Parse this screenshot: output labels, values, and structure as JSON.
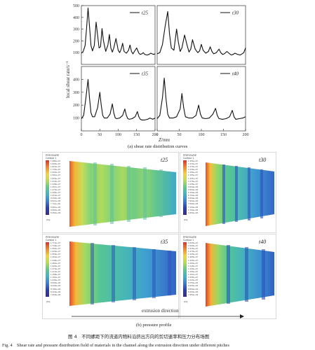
{
  "figure": {
    "part_a_caption": "(a) shear rate distribution curves",
    "part_b_caption": "(b) pressure profile",
    "caption_cn": "图 4　不同螺距下的流道内物料沿挤出方向的剪切速率和压力分布场图",
    "caption_en": "Fig. 4　Shear rate and pressure distribution field of materials in the channel along the extrusion direction under different pitches",
    "y_axis_label": "local shear rate/s⁻¹",
    "x_axis_label": "Z/mm",
    "extrusion_label": "extrusion direction"
  },
  "chart_data": [
    {
      "type": "line",
      "legend": "t25",
      "x": [
        0,
        5,
        10,
        14,
        18,
        22,
        26,
        30,
        35,
        40,
        44,
        48,
        52,
        56,
        60,
        66,
        72,
        76,
        80,
        84,
        88,
        94,
        100,
        104,
        108,
        112,
        116,
        122,
        128,
        132,
        136,
        140,
        144,
        150,
        156,
        160,
        164,
        168,
        172,
        178,
        184,
        188,
        192,
        196,
        200
      ],
      "y": [
        95,
        110,
        160,
        300,
        480,
        330,
        160,
        115,
        160,
        360,
        250,
        140,
        150,
        305,
        200,
        110,
        165,
        255,
        140,
        105,
        140,
        220,
        120,
        100,
        130,
        180,
        110,
        95,
        120,
        165,
        110,
        90,
        110,
        140,
        95,
        85,
        90,
        100,
        85,
        80,
        85,
        95,
        90,
        85,
        90
      ],
      "xlim": [
        0,
        200
      ],
      "ylim": [
        0,
        500
      ],
      "yticks": [
        100,
        200,
        300,
        400,
        500
      ]
    },
    {
      "type": "line",
      "legend": "t30",
      "x": [
        0,
        6,
        12,
        18,
        24,
        28,
        32,
        38,
        44,
        48,
        52,
        56,
        62,
        68,
        72,
        76,
        80,
        86,
        92,
        96,
        100,
        104,
        110,
        116,
        120,
        124,
        128,
        134,
        140,
        144,
        148,
        152,
        158,
        164,
        168,
        172,
        176,
        182,
        188,
        192,
        196,
        200
      ],
      "y": [
        90,
        100,
        170,
        320,
        450,
        260,
        140,
        120,
        300,
        190,
        110,
        140,
        250,
        160,
        105,
        130,
        210,
        130,
        100,
        115,
        170,
        120,
        95,
        110,
        150,
        110,
        90,
        100,
        130,
        100,
        85,
        90,
        110,
        90,
        80,
        85,
        95,
        85,
        80,
        90,
        100,
        140
      ],
      "xlim": [
        0,
        200
      ],
      "ylim": [
        0,
        500
      ]
    },
    {
      "type": "line",
      "legend": "t35",
      "x": [
        0,
        6,
        12,
        18,
        22,
        26,
        30,
        36,
        44,
        50,
        54,
        58,
        62,
        70,
        78,
        84,
        88,
        92,
        96,
        104,
        112,
        118,
        122,
        126,
        130,
        138,
        146,
        152,
        156,
        160,
        164,
        172,
        180,
        186,
        190,
        194,
        200
      ],
      "y": [
        95,
        120,
        250,
        400,
        260,
        140,
        110,
        110,
        180,
        300,
        200,
        120,
        100,
        100,
        130,
        210,
        140,
        100,
        95,
        100,
        120,
        170,
        120,
        95,
        90,
        95,
        110,
        150,
        110,
        90,
        85,
        85,
        90,
        100,
        95,
        90,
        100
      ],
      "xlim": [
        0,
        200
      ],
      "ylim": [
        0,
        500
      ],
      "yticks": [
        100,
        200,
        300,
        400
      ],
      "xticks": [
        0,
        50,
        100,
        150,
        200
      ]
    },
    {
      "type": "line",
      "legend": "t40",
      "x": [
        0,
        6,
        12,
        16,
        20,
        24,
        28,
        36,
        44,
        52,
        56,
        60,
        64,
        72,
        80,
        88,
        94,
        98,
        102,
        110,
        118,
        126,
        132,
        136,
        140,
        148,
        156,
        164,
        170,
        174,
        178,
        186,
        194,
        200
      ],
      "y": [
        95,
        120,
        260,
        410,
        250,
        130,
        100,
        100,
        110,
        170,
        290,
        180,
        110,
        100,
        100,
        120,
        200,
        130,
        100,
        95,
        100,
        130,
        175,
        120,
        95,
        90,
        95,
        110,
        160,
        110,
        90,
        95,
        100,
        110
      ],
      "xlim": [
        0,
        200
      ],
      "ylim": [
        0,
        500
      ],
      "xticks": [
        0,
        50,
        100,
        150,
        200
      ]
    }
  ],
  "pressure_panels": [
    {
      "tag": "t25",
      "header": [
        "PRESSURE",
        "Contour 1"
      ],
      "unit": "[Pa]",
      "scale": [
        "1.986e+07",
        "1.905e+07",
        "1.824e+07",
        "1.743e+07",
        "1.662e+07",
        "1.581e+07",
        "1.500e+07",
        "1.419e+07",
        "1.338e+07",
        "1.257e+07",
        "1.176e+07",
        "1.095e+07",
        "1.014e+07",
        "9.330e+06",
        "8.521e+06",
        "7.711e+06",
        "6.901e+06",
        "6.092e+06",
        "5.282e+06"
      ]
    },
    {
      "tag": "t30",
      "header": [
        "PRESSURE",
        "Contour 1"
      ],
      "unit": "[Pa]",
      "scale": [
        "1.356e+07",
        "1.316e+07",
        "1.276e+07",
        "1.236e+07",
        "1.196e+07",
        "1.156e+07",
        "1.116e+07",
        "1.076e+07",
        "1.036e+07",
        "9.960e+06",
        "9.560e+06",
        "9.160e+06",
        "8.760e+06",
        "8.360e+06",
        "7.960e+06",
        "7.560e+06",
        "7.160e+06",
        "6.760e+06",
        "6.360e+06"
      ]
    },
    {
      "tag": "t35",
      "header": [
        "PRESSURE",
        "Contour 1"
      ],
      "unit": "[Pa]",
      "scale": [
        "1.774e+07",
        "1.718e+07",
        "1.662e+07",
        "1.606e+07",
        "1.550e+07",
        "1.494e+07",
        "1.438e+07",
        "1.382e+07",
        "1.326e+07",
        "1.270e+07",
        "1.214e+07",
        "1.158e+07",
        "1.102e+07",
        "1.046e+07",
        "9.900e+06",
        "9.340e+06",
        "8.780e+06",
        "8.220e+06",
        "7.660e+06"
      ]
    },
    {
      "tag": "t40",
      "header": [
        "PRESSURE",
        "Contour 1"
      ],
      "unit": "[Pa]",
      "scale": [
        "1.605e+07",
        "1.560e+07",
        "1.515e+07",
        "1.470e+07",
        "1.425e+07",
        "1.380e+07",
        "1.335e+07",
        "1.290e+07",
        "1.245e+07",
        "1.200e+07",
        "1.155e+07",
        "1.110e+07",
        "1.065e+07",
        "1.020e+07",
        "9.750e+06",
        "9.300e+06",
        "8.850e+06",
        "8.400e+06",
        "7.950e+06"
      ]
    }
  ]
}
